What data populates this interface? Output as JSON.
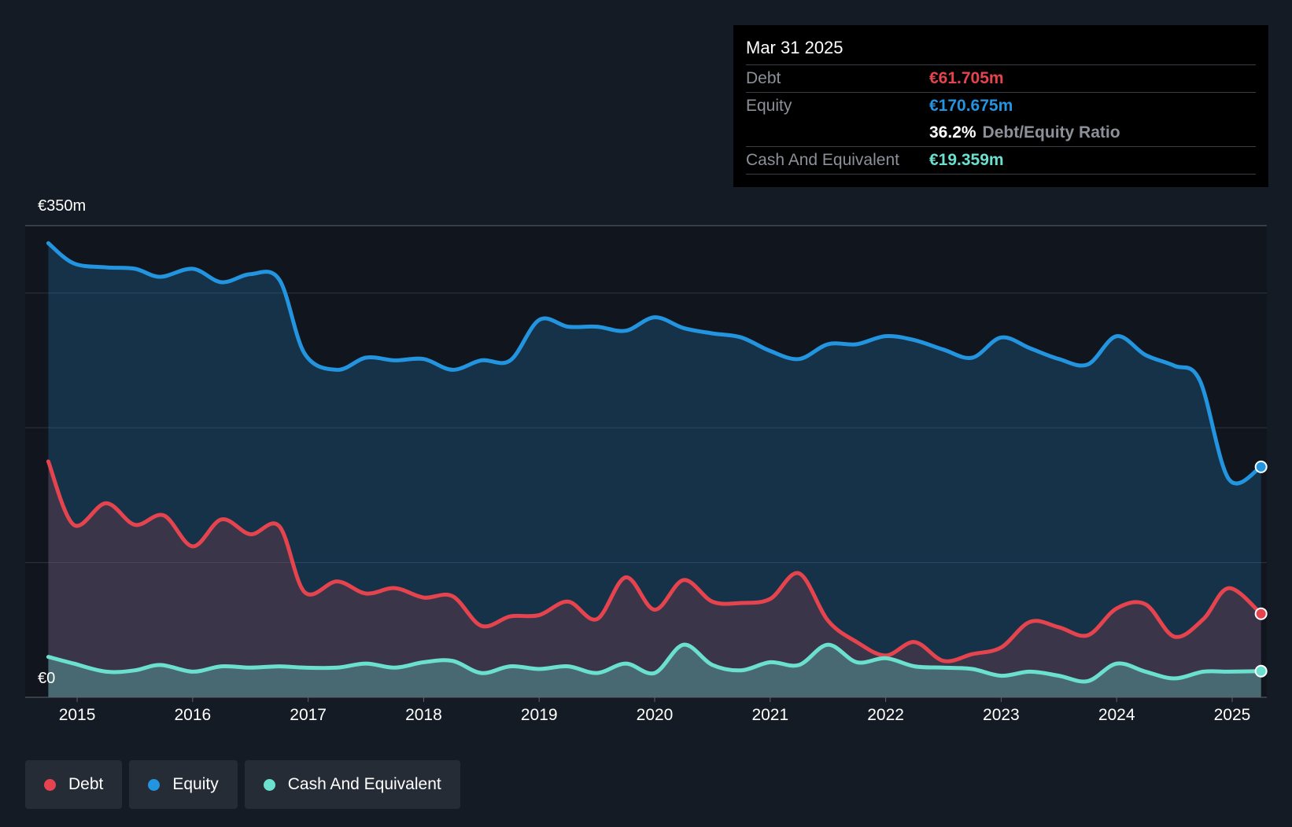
{
  "tooltip": {
    "date": "Mar 31 2025",
    "debt_label": "Debt",
    "debt_value": "€61.705m",
    "equity_label": "Equity",
    "equity_value": "€170.675m",
    "ratio_value": "36.2%",
    "ratio_label": "Debt/Equity Ratio",
    "cash_label": "Cash And Equivalent",
    "cash_value": "€19.359m"
  },
  "legend": [
    {
      "label": "Debt",
      "color": "#e5444f"
    },
    {
      "label": "Equity",
      "color": "#2394df"
    },
    {
      "label": "Cash And Equivalent",
      "color": "#6be0cf"
    }
  ],
  "chart_data": {
    "type": "area",
    "title": "",
    "xlabel": "",
    "ylabel": "",
    "y_top_label": "€350m",
    "y_bottom_label": "€0",
    "ylim": [
      0,
      350
    ],
    "xlim": [
      2014.55,
      2025.3
    ],
    "x_ticks": [
      "2015",
      "2016",
      "2017",
      "2018",
      "2019",
      "2020",
      "2021",
      "2022",
      "2023",
      "2024",
      "2025"
    ],
    "grid": true,
    "series": [
      {
        "name": "Equity",
        "color": "#2394df",
        "points": [
          [
            2014.75,
            337
          ],
          [
            2014.97,
            322
          ],
          [
            2015.25,
            319
          ],
          [
            2015.5,
            318
          ],
          [
            2015.72,
            312
          ],
          [
            2016,
            318
          ],
          [
            2016.25,
            308
          ],
          [
            2016.5,
            314
          ],
          [
            2016.75,
            310
          ],
          [
            2016.97,
            255
          ],
          [
            2017.25,
            243
          ],
          [
            2017.5,
            252
          ],
          [
            2017.75,
            250
          ],
          [
            2018,
            251
          ],
          [
            2018.25,
            243
          ],
          [
            2018.5,
            250
          ],
          [
            2018.75,
            250
          ],
          [
            2019,
            280
          ],
          [
            2019.25,
            275
          ],
          [
            2019.5,
            275
          ],
          [
            2019.75,
            272
          ],
          [
            2020,
            282
          ],
          [
            2020.25,
            274
          ],
          [
            2020.5,
            270
          ],
          [
            2020.75,
            267
          ],
          [
            2021,
            257
          ],
          [
            2021.25,
            251
          ],
          [
            2021.5,
            262
          ],
          [
            2021.75,
            262
          ],
          [
            2022,
            268
          ],
          [
            2022.25,
            265
          ],
          [
            2022.5,
            258
          ],
          [
            2022.75,
            252
          ],
          [
            2023,
            267
          ],
          [
            2023.25,
            259
          ],
          [
            2023.5,
            251
          ],
          [
            2023.75,
            247
          ],
          [
            2024,
            268
          ],
          [
            2024.25,
            254
          ],
          [
            2024.5,
            246
          ],
          [
            2024.72,
            235
          ],
          [
            2024.97,
            162
          ],
          [
            2025.25,
            171
          ]
        ]
      },
      {
        "name": "Debt",
        "color": "#e5444f",
        "points": [
          [
            2014.75,
            175
          ],
          [
            2014.97,
            128
          ],
          [
            2015.25,
            144
          ],
          [
            2015.5,
            128
          ],
          [
            2015.75,
            135
          ],
          [
            2016,
            112
          ],
          [
            2016.25,
            132
          ],
          [
            2016.5,
            121
          ],
          [
            2016.75,
            127
          ],
          [
            2016.97,
            78
          ],
          [
            2017.25,
            86
          ],
          [
            2017.5,
            77
          ],
          [
            2017.75,
            81
          ],
          [
            2018,
            74
          ],
          [
            2018.25,
            75
          ],
          [
            2018.5,
            53
          ],
          [
            2018.75,
            60
          ],
          [
            2019,
            61
          ],
          [
            2019.25,
            71
          ],
          [
            2019.5,
            58
          ],
          [
            2019.75,
            89
          ],
          [
            2020,
            65
          ],
          [
            2020.25,
            87
          ],
          [
            2020.5,
            71
          ],
          [
            2020.75,
            70
          ],
          [
            2021,
            73
          ],
          [
            2021.25,
            92
          ],
          [
            2021.5,
            57
          ],
          [
            2021.75,
            41
          ],
          [
            2022,
            31
          ],
          [
            2022.25,
            41
          ],
          [
            2022.5,
            27
          ],
          [
            2022.75,
            32
          ],
          [
            2023,
            37
          ],
          [
            2023.25,
            56
          ],
          [
            2023.5,
            52
          ],
          [
            2023.75,
            46
          ],
          [
            2024,
            66
          ],
          [
            2024.25,
            69
          ],
          [
            2024.5,
            45
          ],
          [
            2024.75,
            58
          ],
          [
            2024.97,
            81
          ],
          [
            2025.25,
            62
          ]
        ]
      },
      {
        "name": "Cash And Equivalent",
        "color": "#6be0cf",
        "points": [
          [
            2014.75,
            30
          ],
          [
            2014.97,
            25
          ],
          [
            2015.25,
            19
          ],
          [
            2015.5,
            20
          ],
          [
            2015.72,
            24
          ],
          [
            2016,
            19
          ],
          [
            2016.25,
            23
          ],
          [
            2016.5,
            22
          ],
          [
            2016.75,
            23
          ],
          [
            2016.97,
            22
          ],
          [
            2017.25,
            22
          ],
          [
            2017.5,
            25
          ],
          [
            2017.75,
            22
          ],
          [
            2018,
            26
          ],
          [
            2018.25,
            27
          ],
          [
            2018.5,
            18
          ],
          [
            2018.75,
            23
          ],
          [
            2019,
            21
          ],
          [
            2019.25,
            23
          ],
          [
            2019.5,
            18
          ],
          [
            2019.75,
            25
          ],
          [
            2020,
            18
          ],
          [
            2020.25,
            39
          ],
          [
            2020.5,
            24
          ],
          [
            2020.75,
            20
          ],
          [
            2021,
            26
          ],
          [
            2021.25,
            24
          ],
          [
            2021.5,
            39
          ],
          [
            2021.75,
            26
          ],
          [
            2022,
            29
          ],
          [
            2022.25,
            23
          ],
          [
            2022.5,
            22
          ],
          [
            2022.75,
            21
          ],
          [
            2023,
            16
          ],
          [
            2023.25,
            19
          ],
          [
            2023.5,
            16
          ],
          [
            2023.75,
            12
          ],
          [
            2024,
            25
          ],
          [
            2024.25,
            19
          ],
          [
            2024.5,
            14
          ],
          [
            2024.75,
            19
          ],
          [
            2024.97,
            19
          ],
          [
            2025.25,
            19.4
          ]
        ]
      }
    ]
  }
}
